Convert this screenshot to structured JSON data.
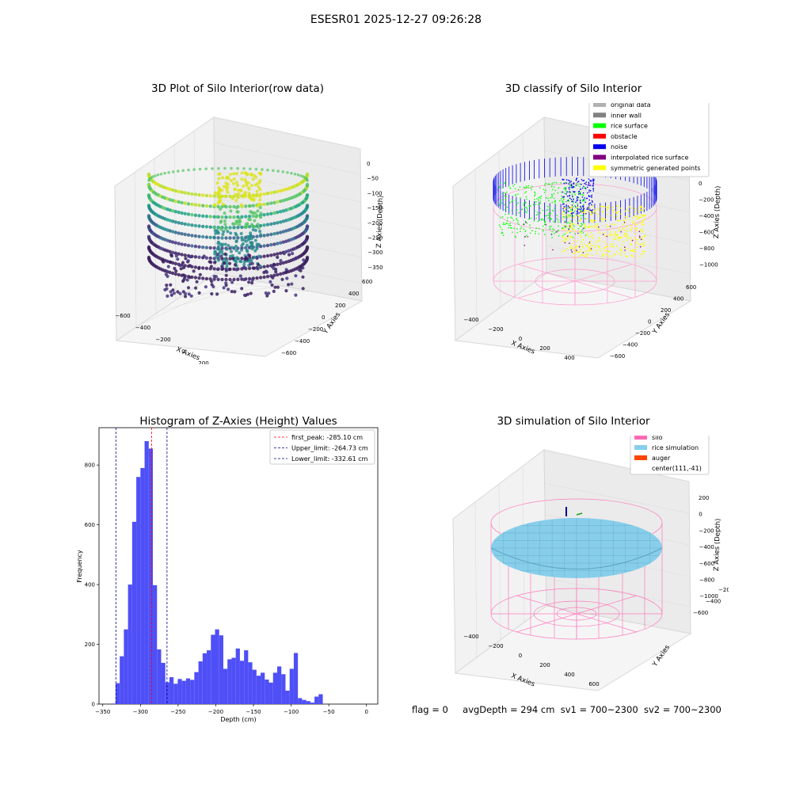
{
  "figure_title": "ESESR01 2025-12-27 09:26:28",
  "footer": {
    "flag": "flag = 0",
    "avg_depth": "avgDepth = 294 cm",
    "sv1": "sv1 = 700~2300",
    "sv2": "sv2 = 700~2300"
  },
  "chart_data": [
    {
      "type": "scatter",
      "projection": "3d",
      "title": "3D Plot of Silo Interior(row data)",
      "xlabel": "X Axies",
      "ylabel": "Y Axies",
      "zlabel": "Z Axies (Depth)",
      "xticks": [
        "−600",
        "−400",
        "−200",
        "0",
        "200",
        "400",
        "600",
        "800"
      ],
      "yticks": [
        "−600",
        "−400",
        "−200",
        "0",
        "200",
        "400",
        "600"
      ],
      "zticks": [
        "0",
        "−50",
        "−100",
        "−150",
        "−200",
        "−250",
        "−300",
        "−350"
      ],
      "colormap": "viridis",
      "colors": {
        "low": "#3b1f5f",
        "mid": "#2a8c8c",
        "high": "#d9e31f"
      }
    },
    {
      "type": "scatter",
      "projection": "3d",
      "title": "3D classify of Silo Interior",
      "xlabel": "X Axies",
      "ylabel": "Y Axies",
      "zlabel": "Z Axies (Depth)",
      "xticks": [
        "−400",
        "−200",
        "0",
        "200",
        "400",
        "600"
      ],
      "yticks": [
        "−600",
        "−400",
        "−200",
        "0",
        "200",
        "400",
        "600"
      ],
      "zticks": [
        "0",
        "−200",
        "−400",
        "−600",
        "−800",
        "−1000"
      ],
      "legend": [
        {
          "label": "original data",
          "color": "#b0b0b0"
        },
        {
          "label": "inner wall",
          "color": "#808080"
        },
        {
          "label": "rice surface",
          "color": "#00ff00"
        },
        {
          "label": "obstacle",
          "color": "#ff0000"
        },
        {
          "label": "noise",
          "color": "#0000ee"
        },
        {
          "label": "interpolated rice surface",
          "color": "#800080"
        },
        {
          "label": "symmetric generated points",
          "color": "#ffff00"
        }
      ],
      "legend_loc": "upper right"
    },
    {
      "type": "bar",
      "title": "Histogram of Z-Axies (Height) Values",
      "xlabel": "Depth (cm)",
      "ylabel": "Frequency",
      "xlim": [
        -355,
        15
      ],
      "ylim": [
        0,
        925
      ],
      "xticks": [
        "−350",
        "−300",
        "−250",
        "−200",
        "−150",
        "−100",
        "−50",
        "0"
      ],
      "yticks": [
        "0",
        "200",
        "400",
        "600",
        "800"
      ],
      "bin_width": 5.5,
      "bin_start": -338.5,
      "values": [
        2,
        70,
        160,
        250,
        400,
        610,
        760,
        790,
        880,
        855,
        398,
        183,
        138,
        73,
        90,
        68,
        84,
        78,
        86,
        81,
        107,
        143,
        170,
        180,
        232,
        250,
        230,
        118,
        150,
        155,
        186,
        145,
        180,
        140,
        115,
        95,
        105,
        82,
        72,
        105,
        126,
        100,
        45,
        118,
        171,
        20,
        14,
        10,
        5,
        25,
        33
      ],
      "bar_color": "#4f4ff7",
      "lines": [
        {
          "label": "first_peak: -285.10 cm",
          "x": -285.1,
          "color": "#ff0000"
        },
        {
          "label": "Upper_limit: -264.73 cm",
          "x": -264.73,
          "color": "#00008b"
        },
        {
          "label": "Lower_limit: -332.61 cm",
          "x": -332.61,
          "color": "#00008b"
        }
      ],
      "legend_loc": "upper right"
    },
    {
      "type": "surface",
      "projection": "3d",
      "title": "3D simulation of Silo Interior",
      "xlabel": "X Axies",
      "ylabel": "Y Axies",
      "zlabel": "Z Axies (Depth)",
      "xticks": [
        "−400",
        "−200",
        "0",
        "200",
        "400",
        "600"
      ],
      "yticks": [
        "−600",
        "−400",
        "−200",
        "0",
        "200",
        "400",
        "600"
      ],
      "zticks": [
        "200",
        "0",
        "−200",
        "−400",
        "−600",
        "−800",
        "−1000"
      ],
      "legend": [
        {
          "label": "silo",
          "color": "#ff69b4"
        },
        {
          "label": "rice simulation",
          "color": "#87ceeb"
        },
        {
          "label": "auger",
          "color": "#ff4500"
        },
        {
          "label": "center(111,-41)",
          "color": ""
        }
      ],
      "legend_loc": "upper right"
    }
  ]
}
